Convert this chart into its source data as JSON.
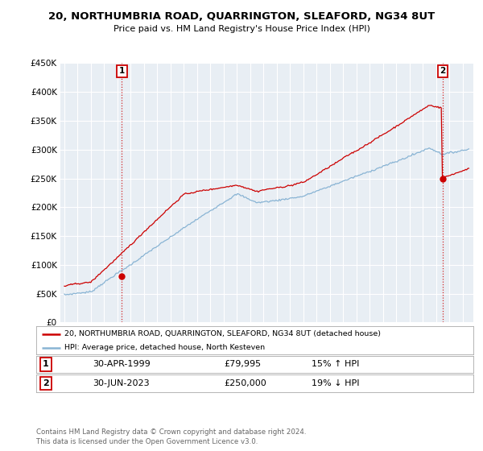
{
  "title": "20, NORTHUMBRIA ROAD, QUARRINGTON, SLEAFORD, NG34 8UT",
  "subtitle": "Price paid vs. HM Land Registry's House Price Index (HPI)",
  "property_label": "20, NORTHUMBRIA ROAD, QUARRINGTON, SLEAFORD, NG34 8UT (detached house)",
  "hpi_label": "HPI: Average price, detached house, North Kesteven",
  "annotation1_date": "30-APR-1999",
  "annotation1_price": "£79,995",
  "annotation1_hpi": "15% ↑ HPI",
  "annotation2_date": "30-JUN-2023",
  "annotation2_price": "£250,000",
  "annotation2_hpi": "19% ↓ HPI",
  "footer": "Contains HM Land Registry data © Crown copyright and database right 2024.\nThis data is licensed under the Open Government Licence v3.0.",
  "sale1_year": 1999.33,
  "sale1_value": 79995,
  "sale2_year": 2023.5,
  "sale2_value": 250000,
  "property_color": "#cc0000",
  "hpi_color": "#89b4d4",
  "background_color": "#e8eef4",
  "ylim": [
    0,
    450000
  ],
  "yticks": [
    0,
    50000,
    100000,
    150000,
    200000,
    250000,
    300000,
    350000,
    400000,
    450000
  ],
  "xlim_start": 1994.7,
  "xlim_end": 2025.8
}
